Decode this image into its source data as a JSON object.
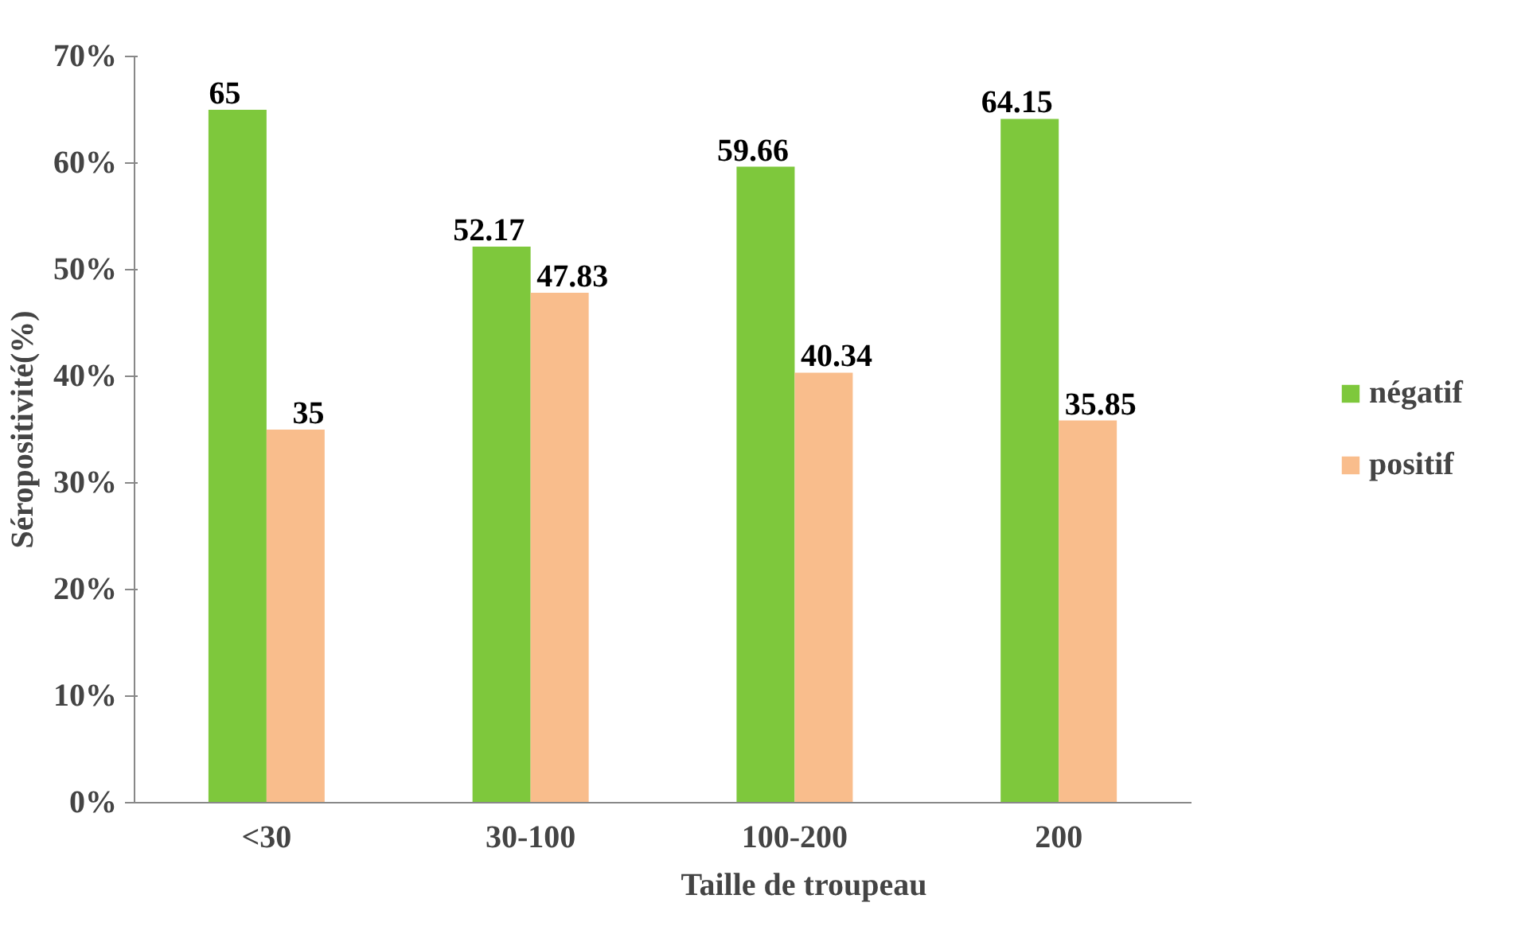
{
  "chart_data": {
    "type": "bar",
    "xlabel": "Taille  de troupeau",
    "ylabel": "Séropositivité(%)",
    "categories": [
      "<30",
      "30-100",
      "100-200",
      "200"
    ],
    "series": [
      {
        "name": "négatif",
        "color": "#7ec83c",
        "values": [
          65,
          52.17,
          59.66,
          64.15
        ]
      },
      {
        "name": "positif",
        "color": "#f9bd8c",
        "values": [
          35,
          47.83,
          40.34,
          35.85
        ]
      }
    ],
    "ylim": [
      0,
      70
    ],
    "yticks": [
      {
        "value": 0,
        "label": "0%"
      },
      {
        "value": 10,
        "label": "10%"
      },
      {
        "value": 20,
        "label": "20%"
      },
      {
        "value": 30,
        "label": "30%"
      },
      {
        "value": 40,
        "label": "40%"
      },
      {
        "value": 50,
        "label": "50%"
      },
      {
        "value": 60,
        "label": "60%"
      },
      {
        "value": 70,
        "label": "70%"
      }
    ],
    "data_labels": true,
    "legend": "right",
    "grid": false
  }
}
